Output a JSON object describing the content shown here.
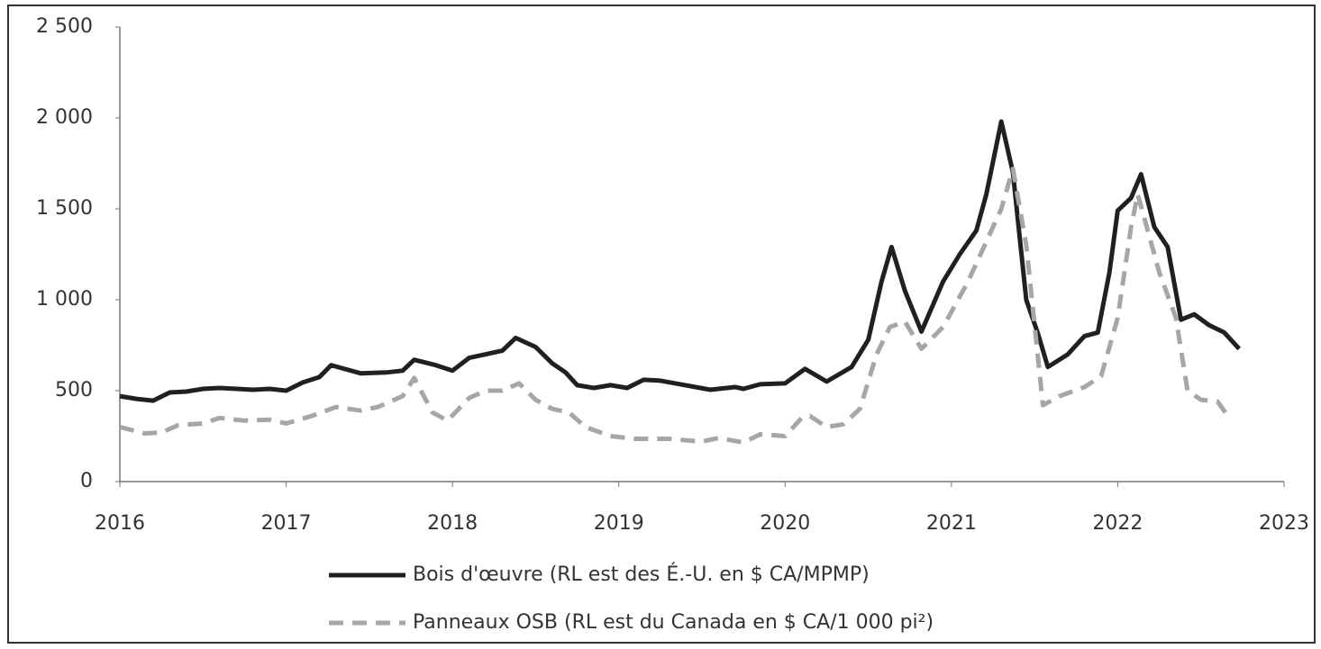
{
  "chart_data": {
    "type": "line",
    "xlim": [
      2016,
      2023
    ],
    "xticks": [
      2016,
      2017,
      2018,
      2019,
      2020,
      2021,
      2022,
      2023
    ],
    "ylim": [
      0,
      2500
    ],
    "yticks": [
      0,
      500,
      {
        "value": 1000,
        "label": "1 000"
      },
      {
        "value": 1500,
        "label": "1 500"
      },
      {
        "value": 2000,
        "label": "2 000"
      },
      {
        "value": 2500,
        "label": "2 500"
      }
    ],
    "legend": "bottom",
    "series": [
      {
        "name": "Bois d'œuvre (RL est des É.-U. en $ CA/MPMP)",
        "color": "#231f20",
        "dash": false,
        "x": [
          2016.0,
          2016.1,
          2016.2,
          2016.3,
          2016.4,
          2016.5,
          2016.6,
          2016.8,
          2016.9,
          2017.0,
          2017.1,
          2017.2,
          2017.27,
          2017.45,
          2017.6,
          2017.7,
          2017.77,
          2017.9,
          2018.0,
          2018.1,
          2018.2,
          2018.3,
          2018.38,
          2018.5,
          2018.6,
          2018.68,
          2018.75,
          2018.85,
          2018.95,
          2019.05,
          2019.15,
          2019.25,
          2019.4,
          2019.55,
          2019.7,
          2019.75,
          2019.85,
          2020.0,
          2020.12,
          2020.25,
          2020.4,
          2020.5,
          2020.58,
          2020.64,
          2020.72,
          2020.82,
          2020.95,
          2021.05,
          2021.15,
          2021.21,
          2021.3,
          2021.37,
          2021.45,
          2021.52,
          2021.58,
          2021.7,
          2021.8,
          2021.88,
          2021.95,
          2022.0,
          2022.08,
          2022.14,
          2022.22,
          2022.3,
          2022.38,
          2022.46,
          2022.55,
          2022.64,
          2022.73
        ],
        "values": [
          470,
          455,
          445,
          490,
          495,
          510,
          515,
          505,
          510,
          500,
          545,
          575,
          640,
          595,
          600,
          610,
          670,
          640,
          610,
          680,
          700,
          720,
          790,
          740,
          650,
          600,
          530,
          515,
          530,
          515,
          560,
          555,
          530,
          505,
          520,
          510,
          535,
          540,
          620,
          550,
          630,
          780,
          1100,
          1290,
          1050,
          825,
          1100,
          1250,
          1380,
          1580,
          1980,
          1700,
          1000,
          815,
          630,
          700,
          800,
          820,
          1150,
          1490,
          1560,
          1690,
          1400,
          1290,
          890,
          920,
          860,
          820,
          730
        ]
      },
      {
        "name": "Panneaux OSB (RL est du Canada en $ CA/1 000 pi²)",
        "color": "#a6a6a6",
        "dash": true,
        "x": [
          2016.0,
          2016.15,
          2016.25,
          2016.35,
          2016.5,
          2016.6,
          2016.75,
          2016.9,
          2017.0,
          2017.15,
          2017.3,
          2017.45,
          2017.55,
          2017.7,
          2017.77,
          2017.88,
          2017.97,
          2018.1,
          2018.2,
          2018.3,
          2018.4,
          2018.5,
          2018.6,
          2018.7,
          2018.8,
          2018.95,
          2019.1,
          2019.3,
          2019.5,
          2019.6,
          2019.75,
          2019.85,
          2020.0,
          2020.1,
          2020.15,
          2020.25,
          2020.35,
          2020.45,
          2020.55,
          2020.63,
          2020.72,
          2020.82,
          2020.95,
          2021.1,
          2021.2,
          2021.3,
          2021.37,
          2021.45,
          2021.55,
          2021.65,
          2021.8,
          2021.9,
          2022.0,
          2022.08,
          2022.12,
          2022.25,
          2022.35,
          2022.42,
          2022.5,
          2022.6,
          2022.67
        ],
        "values": [
          300,
          265,
          270,
          310,
          320,
          350,
          335,
          340,
          320,
          360,
          410,
          390,
          410,
          470,
          570,
          380,
          335,
          460,
          500,
          500,
          540,
          450,
          400,
          380,
          300,
          250,
          235,
          235,
          220,
          240,
          215,
          260,
          250,
          350,
          360,
          300,
          315,
          400,
          700,
          850,
          880,
          730,
          850,
          1100,
          1300,
          1500,
          1720,
          1300,
          420,
          470,
          520,
          580,
          900,
          1400,
          1580,
          1150,
          900,
          500,
          450,
          440,
          350
        ]
      }
    ]
  }
}
